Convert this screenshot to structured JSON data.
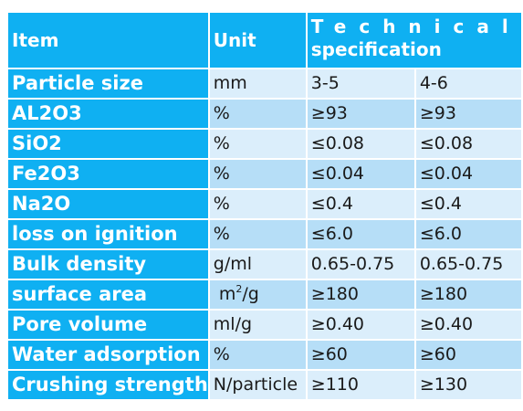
{
  "headers": {
    "item": "Item",
    "unit": "Unit",
    "technical_line1": "Technical",
    "technical_line2": "specification"
  },
  "rows": [
    {
      "item": "Particle size",
      "unit": "mm",
      "spec_a": "3-5",
      "spec_b": "4-6"
    },
    {
      "item": "AL2O3",
      "unit": "%",
      "spec_a": "≥93",
      "spec_b": "≥93"
    },
    {
      "item": "SiO2",
      "unit": "%",
      "spec_a": "≤0.08",
      "spec_b": "≤0.08"
    },
    {
      "item": "Fe2O3",
      "unit": "%",
      "spec_a": "≤0.04",
      "spec_b": "≤0.04"
    },
    {
      "item": "Na2O",
      "unit": "%",
      "spec_a": "≤0.4",
      "spec_b": "≤0.4"
    },
    {
      "item": "loss on ignition",
      "unit": "%",
      "spec_a": "≤6.0",
      "spec_b": "≤6.0"
    },
    {
      "item": "Bulk density",
      "unit": "g/ml",
      "spec_a": "0.65-0.75",
      "spec_b": "0.65-0.75"
    },
    {
      "item": "surface area",
      "unit_base": "m",
      "unit_sup": "2",
      "unit_rest": "/g",
      "spec_a": "≥180",
      "spec_b": "≥180"
    },
    {
      "item": "Pore volume",
      "unit": "ml/g",
      "spec_a": "≥0.40",
      "spec_b": "≥0.40"
    },
    {
      "item": "Water adsorption",
      "unit": "%",
      "spec_a": "≥60",
      "spec_b": "≥60"
    },
    {
      "item": "Crushing strength",
      "unit": "N/particle",
      "spec_a": "≥110",
      "spec_b": "≥130"
    }
  ],
  "colors": {
    "header_blue": "#0fb0f2",
    "row_light": "#dbeefb",
    "row_dark": "#b6def7"
  }
}
